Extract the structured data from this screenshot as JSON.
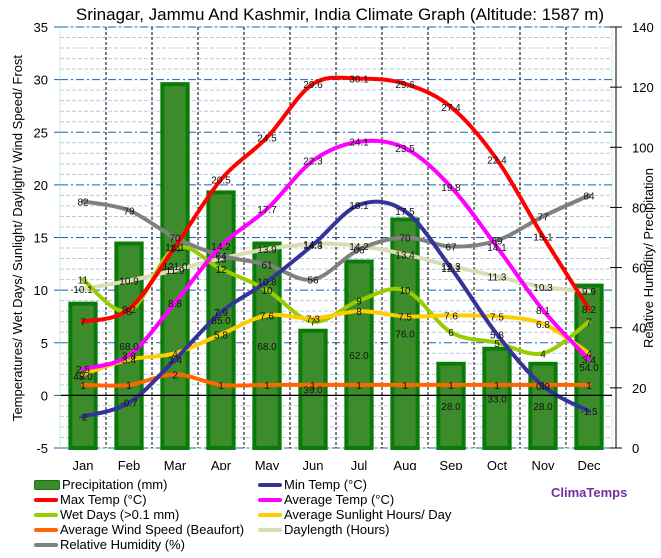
{
  "chart_data": {
    "type": "bar",
    "title": "Srinagar, Jammu And Kashmir, India Climate Graph (Altitude: 1587 m)",
    "ylabel": "Temperatures/ Wet Days/ Sunlight/ Daylight/ Wind Speed/ Frost",
    "y2label": "Relative Humidity/ Precipitation",
    "ylim": [
      -5,
      35
    ],
    "y2lim": [
      0,
      140
    ],
    "yticks": [
      -5,
      0,
      5,
      10,
      15,
      20,
      25,
      30,
      35
    ],
    "y2ticks": [
      0,
      20,
      40,
      60,
      80,
      100,
      120,
      140
    ],
    "grid": true,
    "legend_position": "bottom",
    "categories": [
      "Jan",
      "Feb",
      "Mar",
      "Apr",
      "May",
      "Jun",
      "Jul",
      "Aug",
      "Sep",
      "Oct",
      "Nov",
      "Dec"
    ],
    "series": [
      {
        "name": "Precipitation (mm)",
        "type": "bar",
        "axis": "right",
        "color": "#3c8c2c",
        "values": [
          48.0,
          68.0,
          121.0,
          85.0,
          68.0,
          39.0,
          62.0,
          76.0,
          28.0,
          33.0,
          28.0,
          54.0
        ]
      },
      {
        "name": "Max Temp (°C)",
        "type": "line",
        "axis": "left",
        "color": "#ff0000",
        "values": [
          7,
          8.2,
          14.1,
          20.5,
          24.5,
          29.6,
          30.1,
          29.6,
          27.4,
          22.4,
          15.1,
          8.2
        ]
      },
      {
        "name": "Wet Days (>0.1 mm)",
        "type": "line",
        "axis": "left",
        "color": "#99cc00",
        "values": [
          11,
          8,
          14,
          12,
          10,
          7,
          9,
          10,
          6,
          5,
          4,
          7
        ]
      },
      {
        "name": "Average Wind Speed (Beaufort)",
        "type": "line",
        "axis": "left",
        "color": "#ff6600",
        "values": [
          1,
          1,
          2,
          1,
          1,
          1,
          1,
          1,
          1,
          1,
          1,
          1
        ]
      },
      {
        "name": "Relative Humidity (%)",
        "type": "line",
        "axis": "right",
        "color": "#808080",
        "values": [
          82,
          79,
          70,
          64,
          61,
          56,
          66,
          70,
          67,
          69,
          77,
          84
        ]
      },
      {
        "name": "Min Temp (°C)",
        "type": "line",
        "axis": "left",
        "color": "#333399",
        "values": [
          -2,
          -0.7,
          3.4,
          7.9,
          10.8,
          14.3,
          18.1,
          17.5,
          12.1,
          5.8,
          0.9,
          -1.5
        ]
      },
      {
        "name": "Average Temp (°C)",
        "type": "line",
        "axis": "left",
        "color": "#ff00ff",
        "values": [
          2.5,
          3.8,
          8.8,
          14.2,
          17.7,
          22.3,
          24.1,
          23.5,
          19.8,
          14.1,
          8.1,
          3.4
        ]
      },
      {
        "name": "Average Sunlight Hours/ Day",
        "type": "line",
        "axis": "left",
        "color": "#ffcc00",
        "values": [
          2,
          3.4,
          4.0,
          5.8,
          7.6,
          7.3,
          8.0,
          7.5,
          7.6,
          7.5,
          6.8,
          4.0
        ]
      },
      {
        "name": "Daylength (Hours)",
        "type": "line",
        "axis": "left",
        "color": "#dcdcb4",
        "values": [
          10.1,
          10.9,
          11.9,
          13.0,
          13.9,
          14.4,
          14.2,
          13.4,
          12.3,
          11.3,
          10.3,
          9.9
        ]
      }
    ]
  },
  "legend": {
    "col1": [
      "Precipitation (mm)",
      "Max Temp (°C)",
      "Wet Days (>0.1 mm)",
      "Average Wind Speed (Beaufort)",
      "Relative Humidity (%)"
    ],
    "col2": [
      "Min Temp (°C)",
      "Average Temp (°C)",
      "Average Sunlight Hours/ Day",
      "Daylength (Hours)"
    ]
  },
  "brand": "ClimaTemps"
}
